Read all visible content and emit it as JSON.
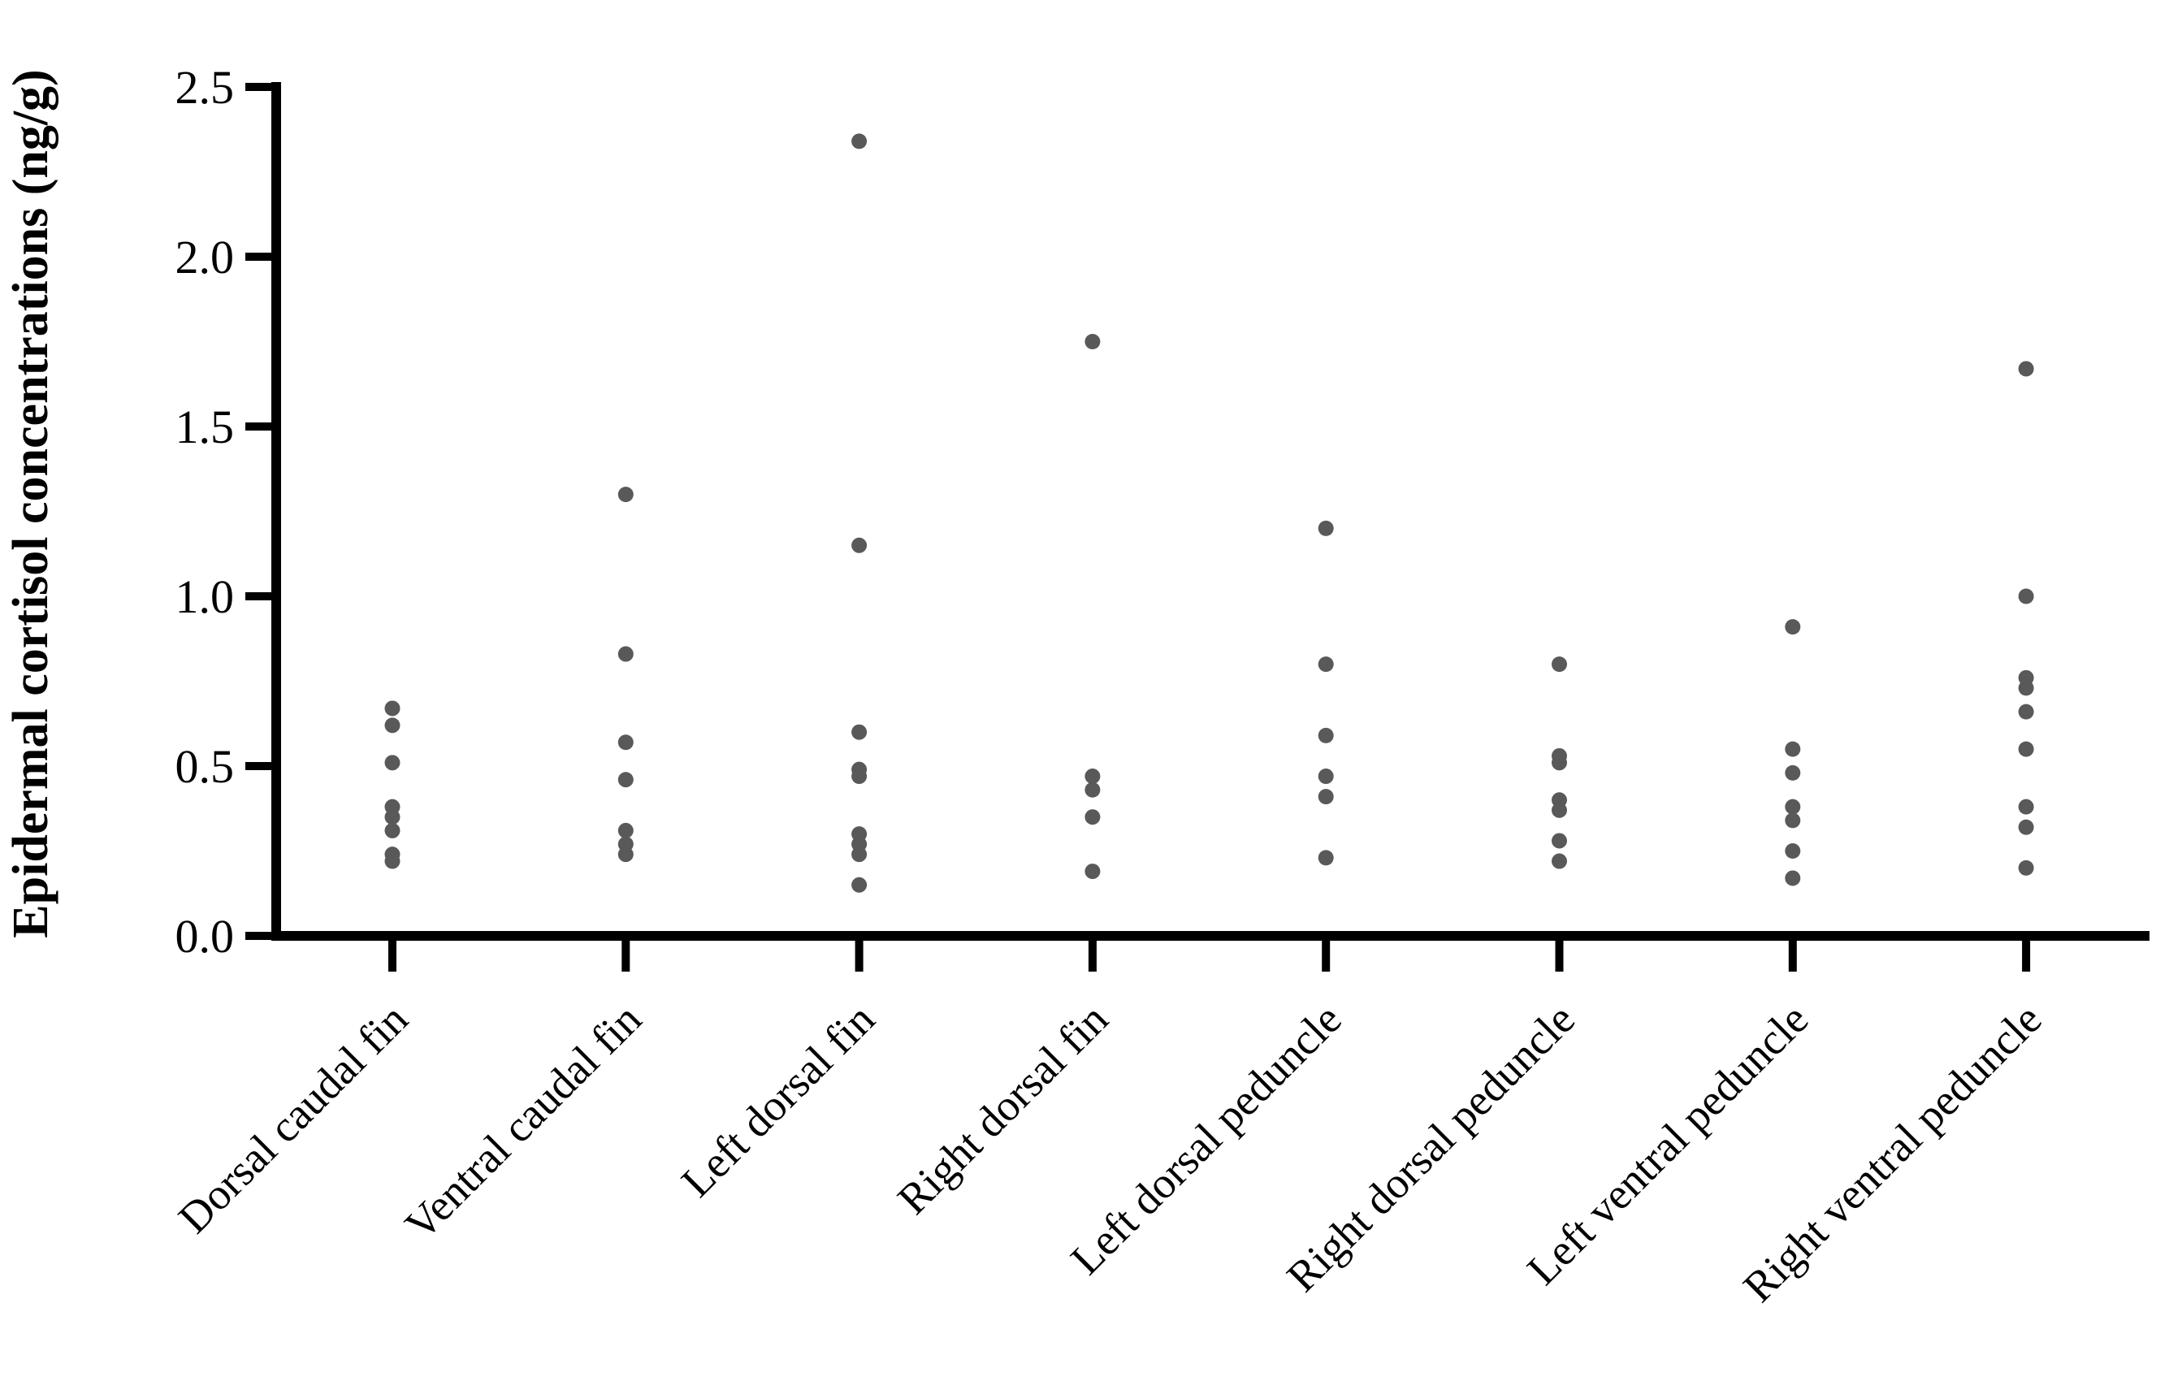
{
  "chart_data": {
    "type": "scatter",
    "subtype": "dot-strip-plot",
    "title": "",
    "xlabel": "",
    "ylabel": "Epidermal cortisol concentrations (ng/g)",
    "ylim": [
      0.0,
      2.5
    ],
    "yticks": [
      0.0,
      0.5,
      1.0,
      1.5,
      2.0,
      2.5
    ],
    "ytick_labels": [
      "0.0",
      "0.5",
      "1.0",
      "1.5",
      "2.0",
      "2.5"
    ],
    "grid": "off",
    "legend": "none",
    "categories": [
      "Dorsal caudal fin",
      "Ventral caudal fin",
      "Left dorsal fin",
      "Right dorsal fin",
      "Left dorsal peduncle",
      "Right dorsal peduncle",
      "Left ventral peduncle",
      "Right ventral peduncle"
    ],
    "series": [
      {
        "name": "Dorsal caudal fin",
        "values": [
          0.67,
          0.62,
          0.51,
          0.38,
          0.35,
          0.31,
          0.24,
          0.22
        ]
      },
      {
        "name": "Ventral caudal fin",
        "values": [
          1.3,
          0.83,
          0.57,
          0.46,
          0.31,
          0.27,
          0.24
        ]
      },
      {
        "name": "Left dorsal fin",
        "values": [
          2.34,
          1.15,
          0.6,
          0.49,
          0.47,
          0.3,
          0.27,
          0.24,
          0.15
        ]
      },
      {
        "name": "Right dorsal fin",
        "values": [
          1.75,
          0.47,
          0.43,
          0.35,
          0.19
        ]
      },
      {
        "name": "Left dorsal peduncle",
        "values": [
          1.2,
          0.8,
          0.59,
          0.47,
          0.41,
          0.23
        ]
      },
      {
        "name": "Right dorsal peduncle",
        "values": [
          0.8,
          0.53,
          0.51,
          0.4,
          0.37,
          0.28,
          0.22
        ]
      },
      {
        "name": "Left ventral peduncle",
        "values": [
          0.91,
          0.55,
          0.48,
          0.38,
          0.34,
          0.25,
          0.17
        ]
      },
      {
        "name": "Right ventral peduncle",
        "values": [
          1.67,
          1.0,
          0.76,
          0.73,
          0.66,
          0.55,
          0.38,
          0.32,
          0.2
        ]
      }
    ],
    "style": {
      "marker_color": "#595959",
      "axis_color": "#000000",
      "marker_radius_px": 9.5
    }
  }
}
